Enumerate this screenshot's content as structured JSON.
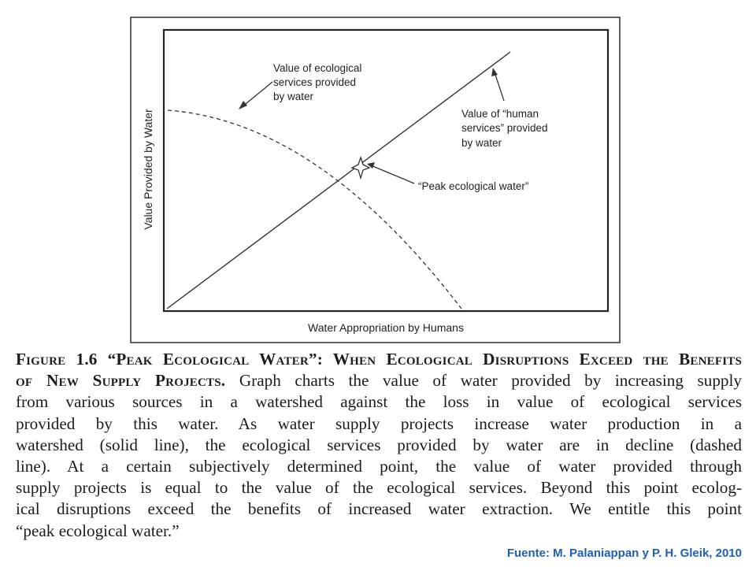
{
  "figure": {
    "y_axis_label": "Value Provided by Water",
    "x_axis_label": "Water Appropriation by Humans",
    "annotation_ecological": [
      "Value of ecological",
      "services provided",
      "by water"
    ],
    "annotation_human": [
      "Value of “human",
      "services” provided",
      "by water"
    ],
    "annotation_peak": "“Peak ecological water”",
    "line_styles": {
      "human_services": "solid",
      "ecological_services": "dashed"
    }
  },
  "caption": {
    "figure_number": "Figure 1.6",
    "title_line1": "“Peak Ecological Water”: When Ecological Disruptions Exceed the Benefits",
    "title_line2": "of New Supply Projects.",
    "lines": [
      "Graph charts the value of water provided by increasing supply",
      "from various sources in a watershed against the loss in value of ecological services",
      "provided by this water. As water supply projects increase water production in a",
      "watershed (solid line), the ecological services provided by water are in decline (dashed",
      "line). At a certain subjectively determined point, the value of water provided through",
      "supply projects is equal to the value of the ecological services. Beyond this point ecolog-",
      "ical disruptions exceed the benefits of increased water extraction. We entitle this point",
      "“peak ecological water.”"
    ]
  },
  "source": "Fuente:  M. Palaniappan y P. H. Gleik, 2010",
  "colors": {
    "source_text": "#1f5fb4",
    "lines": "#333333"
  }
}
